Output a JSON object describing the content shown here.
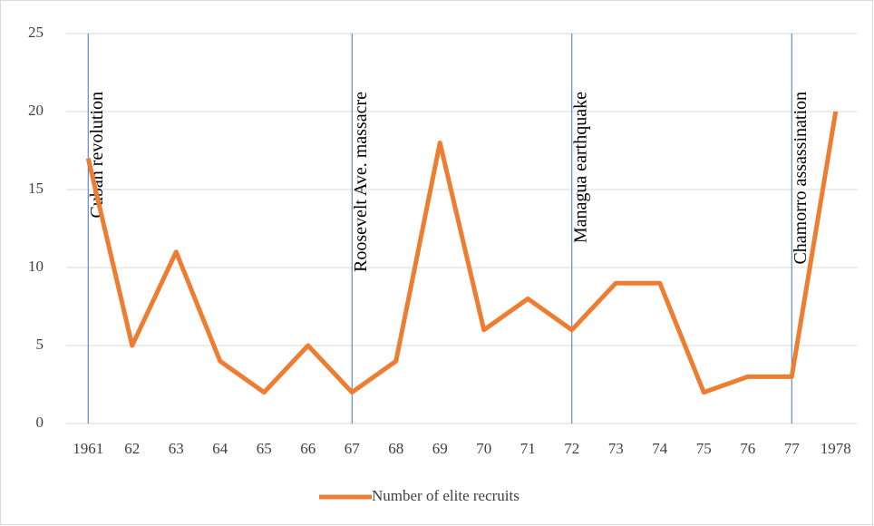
{
  "chart_data": {
    "type": "line",
    "categories": [
      "1961",
      "62",
      "63",
      "64",
      "65",
      "66",
      "67",
      "68",
      "69",
      "70",
      "71",
      "72",
      "73",
      "74",
      "75",
      "76",
      "77",
      "1978"
    ],
    "series": [
      {
        "name": "Number of elite recruits",
        "color": "#ed7d31",
        "values": [
          17,
          5,
          11,
          4,
          2,
          5,
          2,
          4,
          18,
          6,
          8,
          6,
          9,
          9,
          2,
          3,
          3,
          20
        ]
      }
    ],
    "ylim": [
      0,
      25
    ],
    "yticks": [
      0,
      5,
      10,
      15,
      20,
      25
    ],
    "grid": true,
    "legend": "bottom",
    "annotations": [
      {
        "x": "1961",
        "text": "Cuban revolution"
      },
      {
        "x": "67",
        "text": "Roosevelt Ave. massacre"
      },
      {
        "x": "72",
        "text": "Managua earthquake"
      },
      {
        "x": "77",
        "text": "Chamorro assassination"
      }
    ],
    "annotation_color": "#4472c4"
  }
}
